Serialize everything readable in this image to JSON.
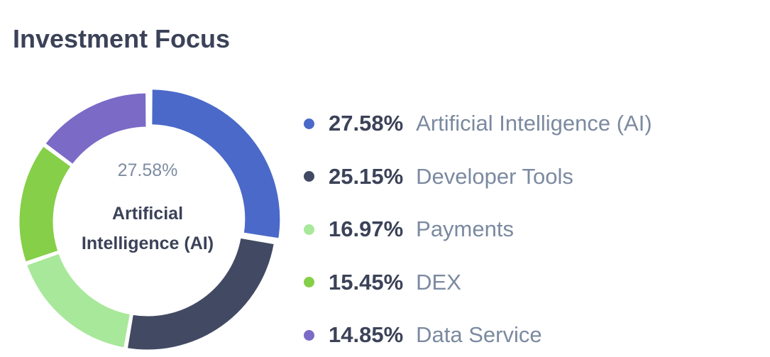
{
  "header": {
    "title": "Investment Focus"
  },
  "chart_data": {
    "type": "pie",
    "title": "Investment Focus",
    "donut": true,
    "legend_position": "right",
    "center": {
      "value": "27.58%",
      "label": "Artificial Intelligence (AI)"
    },
    "slices": [
      {
        "label": "Artificial Intelligence (AI)",
        "value": 27.58,
        "display": "27.58%",
        "color": "#4b69c9"
      },
      {
        "label": "Developer Tools",
        "value": 25.15,
        "display": "25.15%",
        "color": "#424a63"
      },
      {
        "label": "Payments",
        "value": 16.97,
        "display": "16.97%",
        "color": "#a8e89a"
      },
      {
        "label": "DEX",
        "value": 15.45,
        "display": "15.45%",
        "color": "#86cf49"
      },
      {
        "label": "Data Service",
        "value": 14.85,
        "display": "14.85%",
        "color": "#7b6ac6"
      }
    ]
  }
}
